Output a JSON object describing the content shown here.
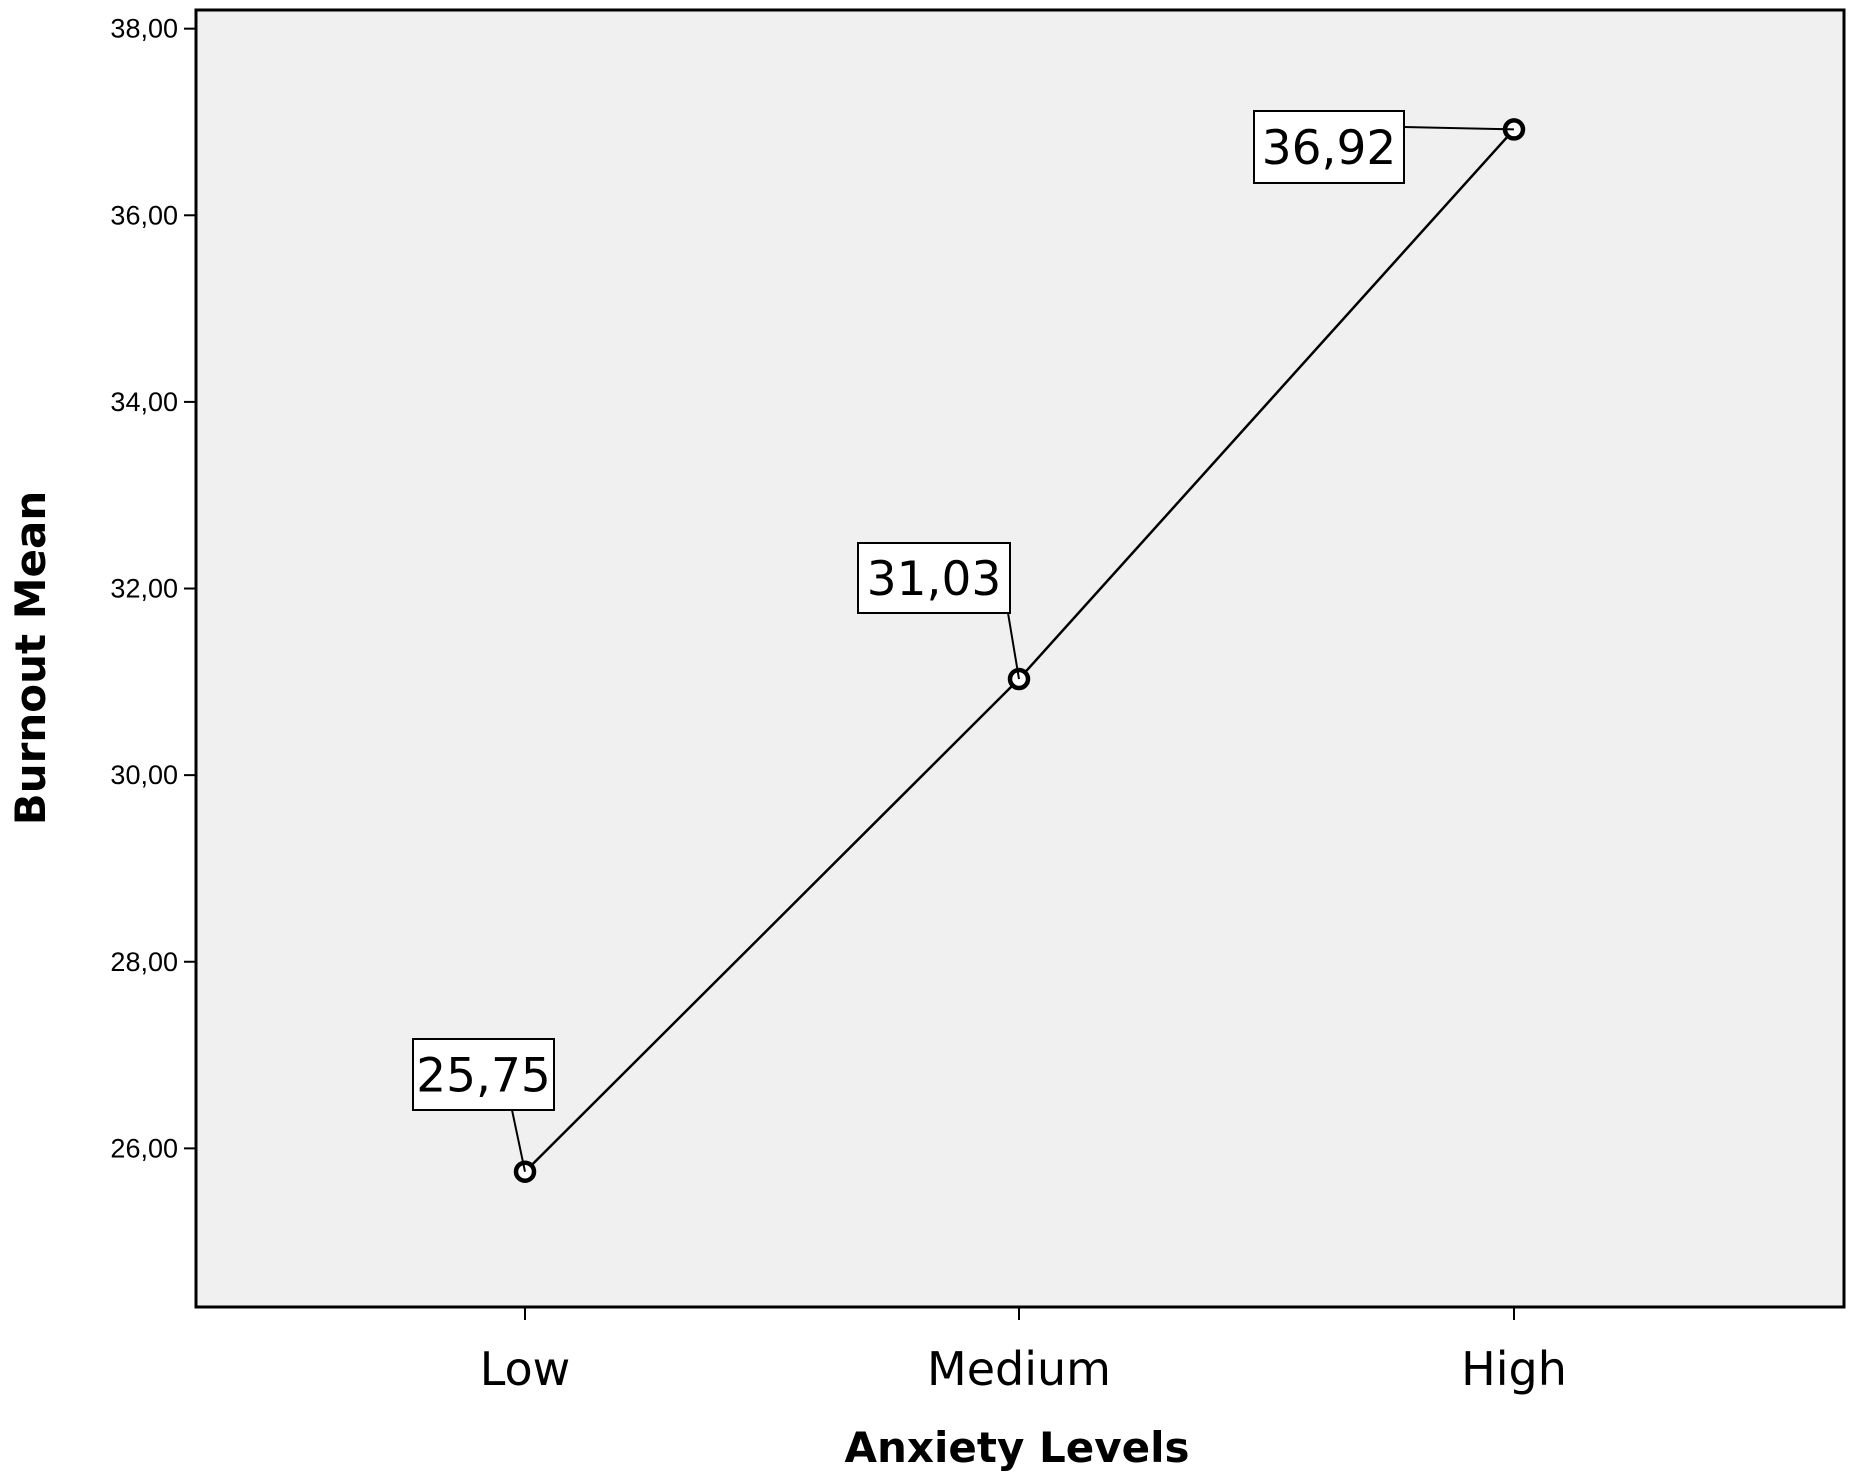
{
  "chart_data": {
    "type": "line",
    "title": "",
    "xlabel": "Anxiety Levels",
    "ylabel": "Burnout Mean",
    "categories": [
      "Low",
      "Medium",
      "High"
    ],
    "values": [
      25.75,
      31.03,
      36.92
    ],
    "data_labels": [
      "25,75",
      "31,03",
      "36,92"
    ],
    "ylim": [
      24.3,
      38.2
    ],
    "yticks": [
      26,
      28,
      30,
      32,
      34,
      36,
      38
    ],
    "ytick_labels": [
      "26,00",
      "28,00",
      "30,00",
      "32,00",
      "34,00",
      "36,00",
      "38,00"
    ],
    "grid": false,
    "legend": "none",
    "colors": {
      "plot_background": "#f0f0f0",
      "line": "#000000",
      "marker": "#000000"
    }
  }
}
